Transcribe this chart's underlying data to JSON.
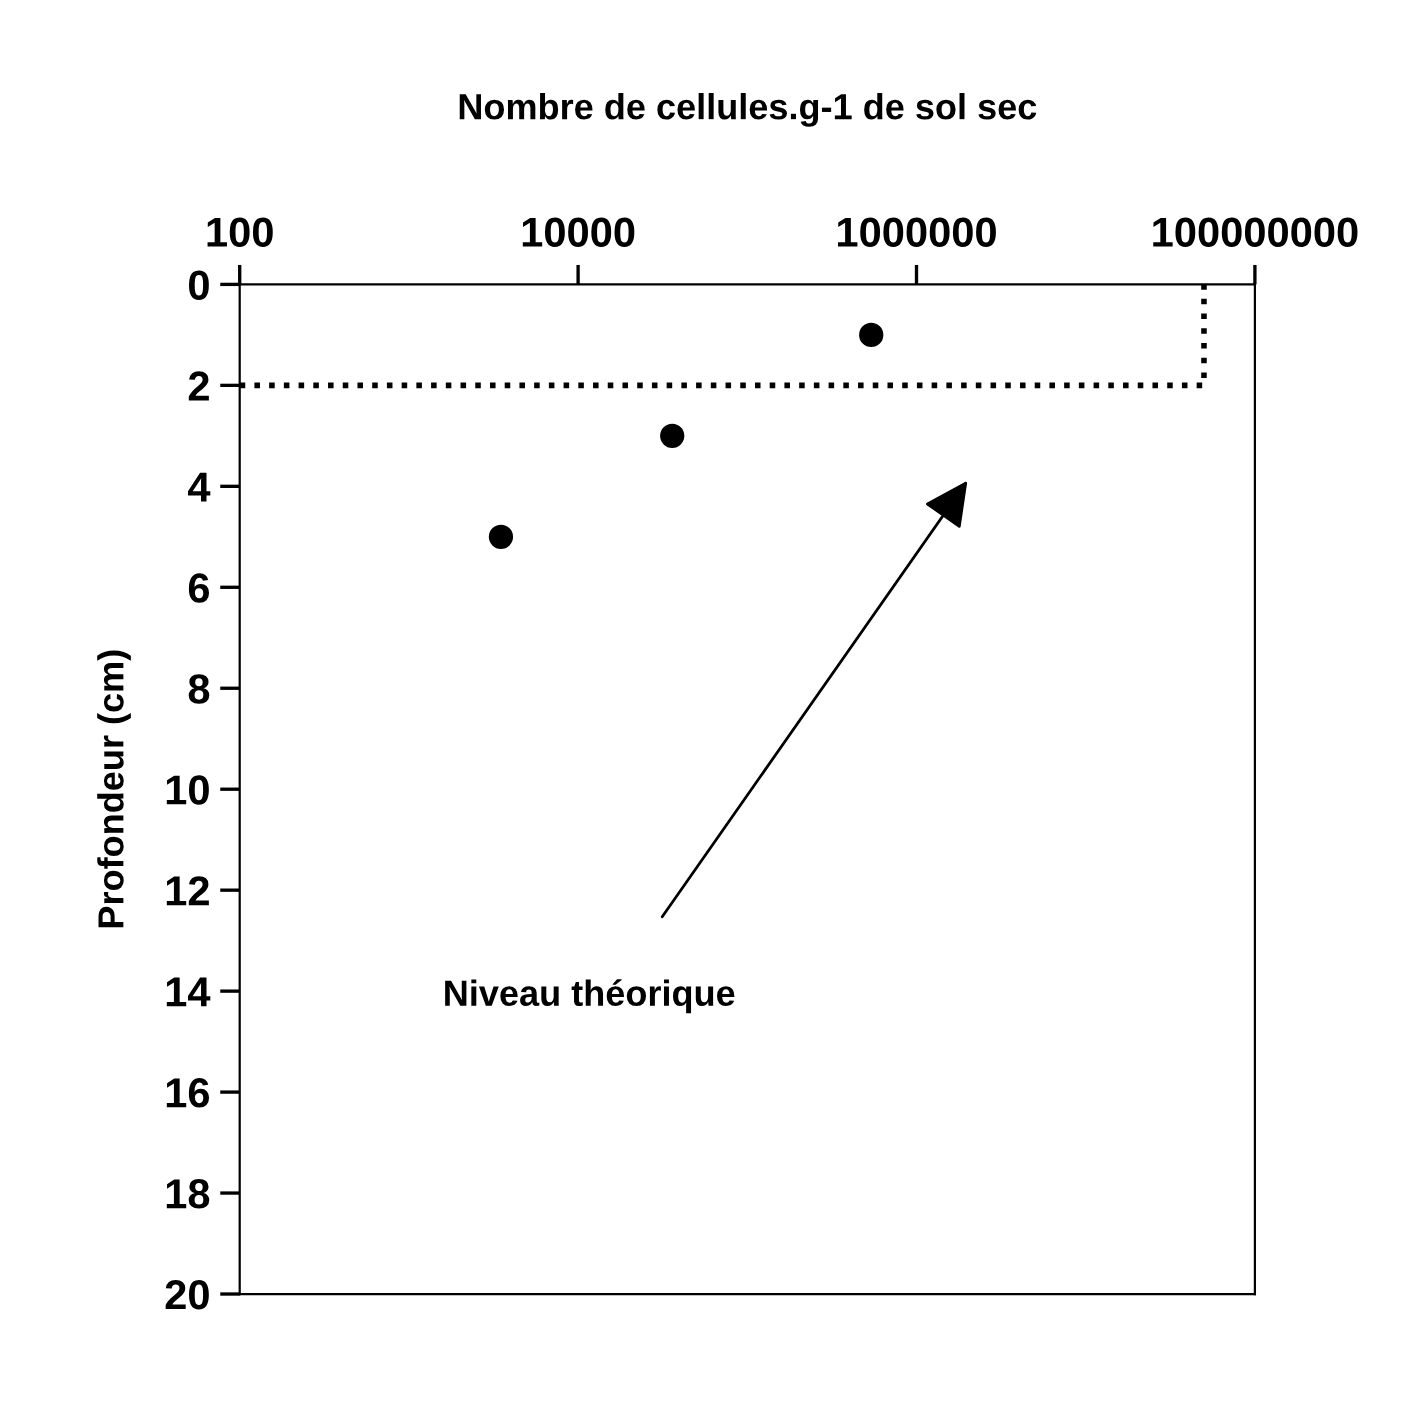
{
  "chart_data": {
    "type": "scatter",
    "xlabel": "Nombre de cellules.g-1 de sol sec",
    "ylabel": "Profondeur (cm)",
    "log": "x",
    "xlim": [
      100,
      100000000
    ],
    "xticks": [
      100,
      10000,
      1000000,
      100000000
    ],
    "ylim": [
      20,
      0
    ],
    "yticks": [
      0,
      2,
      4,
      6,
      8,
      10,
      12,
      14,
      16,
      18,
      20
    ],
    "grid": false,
    "series": [
      {
        "color": "#000000",
        "marker": "circle",
        "x": [
          3500,
          36000,
          540000
        ],
        "values": [
          5,
          3,
          1
        ]
      },
      {
        "type": "line",
        "color": "#000000",
        "marker": "none",
        "line_style": "dotted",
        "x": [
          100,
          50000000,
          50000000
        ],
        "values": [
          2,
          2,
          0
        ]
      }
    ],
    "annotations": [
      "Niveau théorique"
    ]
  }
}
